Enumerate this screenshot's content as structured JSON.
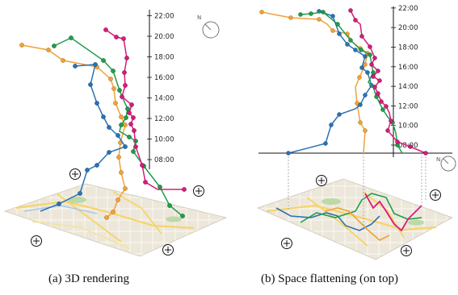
{
  "panels": [
    {
      "id": "a",
      "caption": "(a) 3D rendering",
      "time_ticks": [
        "08:00",
        "10:00",
        "12:00",
        "14:00",
        "16:00",
        "18:00",
        "20:00",
        "22:00"
      ],
      "compass_label": "N"
    },
    {
      "id": "b",
      "caption": "(b) Space flattening (on top)",
      "time_ticks": [
        "08:00",
        "10:00",
        "12:00",
        "14:00",
        "16:00",
        "18:00",
        "20:00",
        "22:00"
      ],
      "compass_label": "N"
    }
  ],
  "colors": {
    "blue": "#2a72b5",
    "green": "#1f9e4b",
    "orange": "#f0a23a",
    "magenta": "#d81b7a"
  }
}
